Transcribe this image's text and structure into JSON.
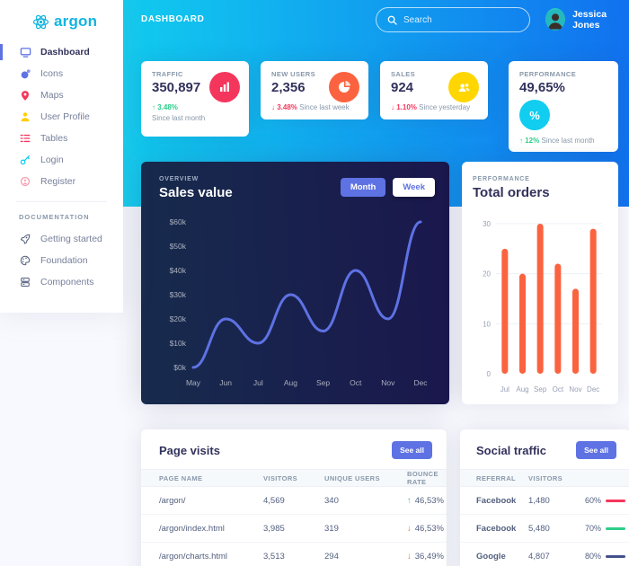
{
  "brand": {
    "name": "argon"
  },
  "topbar": {
    "title": "DASHBOARD",
    "search_placeholder": "Search",
    "user_name": "Jessica Jones"
  },
  "sidebar": {
    "items": [
      {
        "label": "Dashboard",
        "icon": "tv-icon",
        "active": true
      },
      {
        "label": "Icons",
        "icon": "planet-icon"
      },
      {
        "label": "Maps",
        "icon": "pin-icon"
      },
      {
        "label": "User Profile",
        "icon": "person-icon"
      },
      {
        "label": "Tables",
        "icon": "bullet-list-icon"
      },
      {
        "label": "Login",
        "icon": "key-icon"
      },
      {
        "label": "Register",
        "icon": "circle-icon"
      }
    ],
    "section_label": "DOCUMENTATION",
    "doc_items": [
      {
        "label": "Getting started",
        "icon": "rocket-icon"
      },
      {
        "label": "Foundation",
        "icon": "palette-icon"
      },
      {
        "label": "Components",
        "icon": "components-icon"
      }
    ]
  },
  "stats": [
    {
      "label": "TRAFFIC",
      "value": "350,897",
      "arrow": "↑",
      "delta": "3.48%",
      "dir": "up",
      "period": "Since last month",
      "icon": "bar-chart-icon",
      "icon_color": "#f5365c"
    },
    {
      "label": "NEW USERS",
      "value": "2,356",
      "arrow": "↓",
      "delta": "3.48%",
      "dir": "down",
      "period": "Since last week",
      "icon": "pie-chart-icon",
      "icon_color": "#fb6340"
    },
    {
      "label": "SALES",
      "value": "924",
      "arrow": "↓",
      "delta": "1.10%",
      "dir": "down",
      "period": "Since yesterday",
      "icon": "users-icon",
      "icon_color": "#ffd600"
    },
    {
      "label": "PERFORMANCE",
      "value": "49,65%",
      "arrow": "↑",
      "delta": "12%",
      "dir": "up",
      "period": "Since last month",
      "icon": "percent-icon",
      "icon_color": "#11cdef",
      "percent_glyph": "%"
    }
  ],
  "sales_chart_header": {
    "overline": "OVERVIEW",
    "title": "Sales value",
    "month_btn": "Month",
    "week_btn": "Week"
  },
  "orders_chart_header": {
    "overline": "PERFORMANCE",
    "title": "Total orders"
  },
  "chart_data": [
    {
      "type": "line",
      "title": "Sales value",
      "categories": [
        "May",
        "Jun",
        "Jul",
        "Aug",
        "Sep",
        "Oct",
        "Nov",
        "Dec"
      ],
      "values": [
        0,
        20,
        10,
        30,
        15,
        40,
        20,
        60
      ],
      "ylim": [
        0,
        60
      ],
      "y_ticks": [
        {
          "v": 0,
          "label": "$0k"
        },
        {
          "v": 10,
          "label": "$10k"
        },
        {
          "v": 20,
          "label": "$20k"
        },
        {
          "v": 30,
          "label": "$30k"
        },
        {
          "v": 40,
          "label": "$40k"
        },
        {
          "v": 50,
          "label": "$50k"
        },
        {
          "v": 60,
          "label": "$60k"
        }
      ],
      "line_color": "#5e72e4",
      "grid": false,
      "legend": "none"
    },
    {
      "type": "bar",
      "title": "Total orders",
      "categories": [
        "Jul",
        "Aug",
        "Sep",
        "Oct",
        "Nov",
        "Dec"
      ],
      "values": [
        25,
        20,
        30,
        22,
        17,
        29
      ],
      "ylim": [
        0,
        30
      ],
      "y_ticks": [
        {
          "v": 0,
          "label": "0"
        },
        {
          "v": 10,
          "label": "10"
        },
        {
          "v": 20,
          "label": "20"
        },
        {
          "v": 30,
          "label": "30"
        }
      ],
      "bar_color": "#fb6340",
      "grid": true,
      "legend": "none"
    }
  ],
  "page_visits": {
    "title": "Page visits",
    "see_all": "See all",
    "columns": [
      "PAGE NAME",
      "VISITORS",
      "UNIQUE USERS",
      "BOUNCE RATE"
    ],
    "rows": [
      {
        "page": "/argon/",
        "visitors": "4,569",
        "unique": "340",
        "arrow": "↑",
        "dir": "up",
        "bounce": "46,53%"
      },
      {
        "page": "/argon/index.html",
        "visitors": "3,985",
        "unique": "319",
        "arrow": "↓",
        "dir": "down",
        "bounce": "46,53%"
      },
      {
        "page": "/argon/charts.html",
        "visitors": "3,513",
        "unique": "294",
        "arrow": "↓",
        "dir": "down",
        "bounce": "36,49%"
      }
    ]
  },
  "social_traffic": {
    "title": "Social traffic",
    "see_all": "See all",
    "columns": [
      "REFERRAL",
      "VISITORS"
    ],
    "rows": [
      {
        "referral": "Facebook",
        "visitors": "1,480",
        "percent": "60%",
        "bar_color": "#f5365c"
      },
      {
        "referral": "Facebook",
        "visitors": "5,480",
        "percent": "70%",
        "bar_color": "#2dce89"
      },
      {
        "referral": "Google",
        "visitors": "4,807",
        "percent": "80%",
        "bar_color": "#42518c"
      }
    ]
  },
  "colors": {
    "gradient_start": "#11cdef",
    "gradient_end": "#1171ef",
    "dark_card_start": "#172b4d",
    "dark_card_end": "#1a174d",
    "accent": "#5e72e4",
    "green": "#2dce89",
    "red": "#f5365c",
    "orange": "#fb6340",
    "yellow": "#ffd600",
    "teal": "#11cdef",
    "heading": "#32325d",
    "muted": "#8898aa",
    "page_bg": "#f8f9fe"
  }
}
